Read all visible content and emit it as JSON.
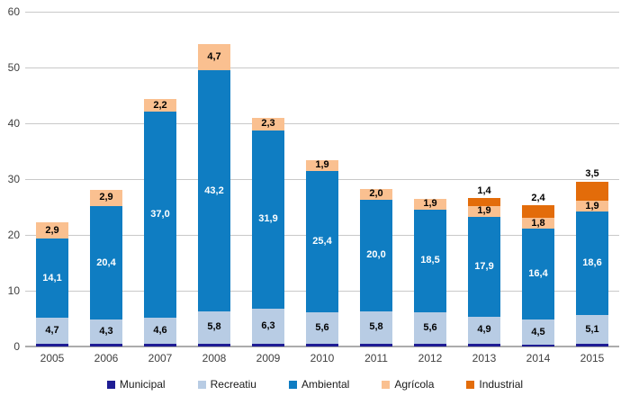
{
  "chart_data": {
    "type": "bar",
    "stacked": true,
    "title": "",
    "xlabel": "",
    "ylabel": "",
    "ylim": [
      0,
      60
    ],
    "y_ticks": [
      0,
      10,
      20,
      30,
      40,
      50,
      60
    ],
    "grid": true,
    "legend_position": "bottom",
    "decimal_separator": ",",
    "categories": [
      "2005",
      "2006",
      "2007",
      "2008",
      "2009",
      "2010",
      "2011",
      "2012",
      "2013",
      "2014",
      "2015"
    ],
    "series": [
      {
        "name": "Municipal",
        "color": "#1F1D94",
        "labels": "none",
        "label_color": "#000000",
        "values": [
          0.5,
          0.5,
          0.5,
          0.5,
          0.5,
          0.5,
          0.5,
          0.5,
          0.5,
          0.3,
          0.5
        ]
      },
      {
        "name": "Recreatiu",
        "color": "#B8CCE4",
        "labels": "inside",
        "label_color": "#000000",
        "values": [
          4.7,
          4.3,
          4.6,
          5.8,
          6.3,
          5.6,
          5.8,
          5.6,
          4.9,
          4.5,
          5.1
        ]
      },
      {
        "name": "Ambiental",
        "color": "#0F7DC2",
        "labels": "inside",
        "label_color": "#FFFFFF",
        "values": [
          14.1,
          20.4,
          37.0,
          43.2,
          31.9,
          25.4,
          20.0,
          18.5,
          17.9,
          16.4,
          18.6
        ]
      },
      {
        "name": "Agrícola",
        "color": "#FAC090",
        "labels": "inside",
        "label_color": "#000000",
        "values": [
          2.9,
          2.9,
          2.2,
          4.7,
          2.3,
          1.9,
          2.0,
          1.9,
          1.9,
          1.8,
          1.9
        ]
      },
      {
        "name": "Industrial",
        "color": "#E36C0A",
        "labels": "above",
        "label_color": "#000000",
        "values": [
          0,
          0,
          0,
          0,
          0,
          0,
          0,
          0,
          1.4,
          2.4,
          3.5
        ]
      }
    ],
    "colors": {
      "gridline": "#C9C9C9",
      "axis_line": "#ACACAC",
      "axis_text": "#404040",
      "background": "#FFFFFF"
    }
  }
}
